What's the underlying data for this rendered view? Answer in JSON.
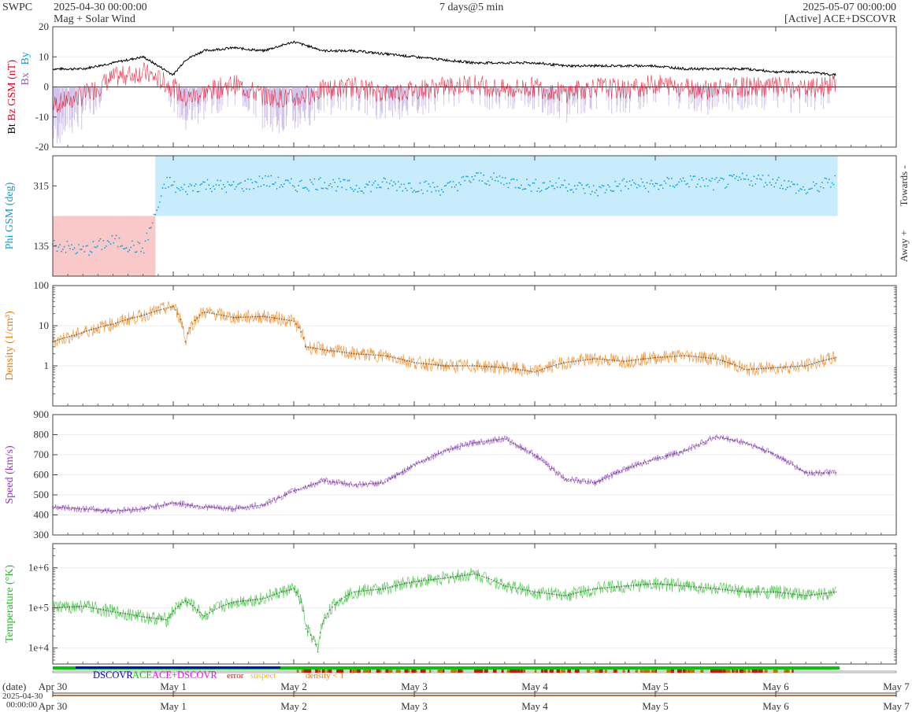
{
  "header": {
    "source": "SWPC",
    "start": "2025-04-30 00:00:00",
    "subtitle": "Mag + Solar Wind",
    "span": "7 days@5 min",
    "end": "2025-05-07 00:00:00",
    "active": "[Active] ACE+DSCOVR"
  },
  "colors": {
    "bt": "#000000",
    "bz": "#e8001c",
    "bz_fill": "#b3a0dd",
    "phi": "#00a0e0",
    "phi_towards": "#c8ecfb",
    "phi_away": "#f9c8c8",
    "density": "#f07800",
    "speed": "#9632d2",
    "temperature": "#1ebe1e",
    "dscovr": "#0000ff",
    "ace": "#00c800",
    "ace_dscovr": "#ff00ff",
    "error": "#ff0000",
    "suspect": "#ffb400"
  },
  "chart_data": [
    {
      "id": "mag",
      "type": "line",
      "ylabel_parts": [
        "Bt",
        "Bz GSM (nT)",
        "Bx",
        "By"
      ],
      "ylim": [
        -20,
        20
      ],
      "yticks": [
        "20",
        "10",
        "0",
        "-10",
        "-20"
      ],
      "x_days": [
        0,
        0.25,
        0.5,
        0.75,
        1.0,
        1.1,
        1.25,
        1.5,
        1.75,
        2.0,
        2.25,
        2.5,
        2.75,
        3.0,
        3.25,
        3.5,
        3.75,
        4.0,
        4.25,
        4.5,
        4.75,
        5.0,
        5.25,
        5.5,
        5.75,
        6.0,
        6.25,
        6.5
      ],
      "series": [
        {
          "key": "bt",
          "values": [
            6,
            6,
            8,
            10,
            4,
            9,
            12,
            13,
            12,
            15,
            12,
            12,
            11,
            10,
            9,
            8,
            8,
            8,
            7,
            7,
            7,
            7,
            6,
            6,
            6,
            5,
            5,
            4
          ]
        },
        {
          "key": "bz",
          "values": [
            -6,
            -3,
            3,
            5,
            0,
            -4,
            -2,
            1,
            -3,
            -4,
            -1,
            0,
            -2,
            -1,
            0,
            1,
            -1,
            0,
            -2,
            0,
            -1,
            1,
            0,
            -1,
            0,
            0,
            -1,
            1
          ]
        }
      ]
    },
    {
      "id": "phi",
      "type": "scatter",
      "ylabel": "Phi GSM (deg)",
      "ylim": [
        45,
        405
      ],
      "yticks": [
        "315",
        "135"
      ],
      "right_labels": [
        "Towards -",
        "Away +"
      ],
      "x_days": [
        0,
        0.25,
        0.5,
        0.75,
        0.95,
        1.05,
        1.25,
        1.5,
        1.75,
        2.0,
        2.25,
        2.5,
        2.75,
        3.0,
        3.25,
        3.5,
        3.75,
        4.0,
        4.25,
        4.5,
        4.75,
        5.0,
        5.25,
        5.5,
        5.75,
        6.0,
        6.25,
        6.5
      ],
      "values": [
        140,
        120,
        150,
        125,
        330,
        300,
        320,
        310,
        330,
        315,
        325,
        310,
        320,
        315,
        305,
        340,
        330,
        315,
        320,
        300,
        320,
        315,
        330,
        320,
        335,
        330,
        300,
        330
      ]
    },
    {
      "id": "density",
      "type": "line",
      "ylabel": "Density (1/cm³)",
      "scale": "log",
      "ylim": [
        0.1,
        100
      ],
      "yticks": [
        "100",
        "10",
        "1"
      ],
      "x_days": [
        0,
        0.2,
        0.5,
        0.75,
        1.0,
        1.1,
        1.25,
        1.5,
        1.75,
        2.0,
        2.1,
        2.25,
        2.5,
        2.75,
        3.0,
        3.25,
        3.5,
        3.75,
        4.0,
        4.25,
        4.5,
        4.75,
        5.0,
        5.25,
        5.5,
        5.75,
        6.0,
        6.25,
        6.5
      ],
      "values": [
        4,
        6,
        11,
        18,
        30,
        4,
        22,
        16,
        17,
        13,
        3,
        2.5,
        2,
        1.8,
        1.2,
        1.0,
        1.0,
        0.9,
        0.7,
        1.2,
        1.5,
        1.3,
        1.6,
        1.8,
        1.5,
        0.8,
        0.9,
        1.0,
        1.6
      ]
    },
    {
      "id": "speed",
      "type": "line",
      "ylabel": "Speed (km/s)",
      "ylim": [
        300,
        900
      ],
      "yticks": [
        "900",
        "800",
        "700",
        "600",
        "500",
        "400",
        "300"
      ],
      "x_days": [
        0,
        0.25,
        0.5,
        0.75,
        1.0,
        1.25,
        1.5,
        1.75,
        2.0,
        2.25,
        2.5,
        2.75,
        3.0,
        3.25,
        3.5,
        3.75,
        4.0,
        4.25,
        4.5,
        4.75,
        5.0,
        5.25,
        5.5,
        5.75,
        6.0,
        6.25,
        6.5
      ],
      "values": [
        440,
        430,
        420,
        430,
        460,
        440,
        430,
        450,
        520,
        570,
        550,
        560,
        650,
        720,
        760,
        780,
        700,
        580,
        560,
        630,
        680,
        720,
        790,
        760,
        700,
        610,
        610
      ]
    },
    {
      "id": "temperature",
      "type": "line",
      "ylabel": "Temperature (°K)",
      "scale": "log",
      "ylim": [
        4000,
        4000000
      ],
      "yticks": [
        "1e+6",
        "1e+5",
        "1e+4"
      ],
      "x_days": [
        0,
        0.25,
        0.5,
        0.75,
        0.95,
        1.1,
        1.25,
        1.5,
        1.75,
        2.0,
        2.1,
        2.2,
        2.5,
        2.75,
        3.0,
        3.25,
        3.5,
        3.75,
        4.0,
        4.25,
        4.5,
        4.75,
        5.0,
        5.25,
        5.5,
        5.75,
        6.0,
        6.25,
        6.5
      ],
      "values": [
        100000,
        110000,
        80000,
        60000,
        50000,
        150000,
        60000,
        140000,
        170000,
        300000,
        30000,
        8000,
        250000,
        300000,
        450000,
        550000,
        700000,
        350000,
        250000,
        200000,
        300000,
        350000,
        400000,
        350000,
        300000,
        250000,
        250000,
        200000,
        250000
      ]
    }
  ],
  "source_bar": {
    "legend": [
      {
        "key": "dscovr",
        "label": "DSCOVR"
      },
      {
        "key": "ace",
        "label": "ACE"
      },
      {
        "key": "ace_dscovr",
        "label": "ACE+DSCOVR"
      },
      {
        "key": "error",
        "label": "error"
      },
      {
        "key": "suspect",
        "label": "suspect"
      },
      {
        "key": "density",
        "label": "density < 1"
      }
    ]
  },
  "x_axis": {
    "title": "(date)",
    "ticks": [
      "Apr 30",
      "May 1",
      "May 2",
      "May 3",
      "May 4",
      "May 5",
      "May 6",
      "May 7"
    ],
    "start_date_line1": "2025-04-30",
    "start_date_line2": "00:00:00"
  }
}
